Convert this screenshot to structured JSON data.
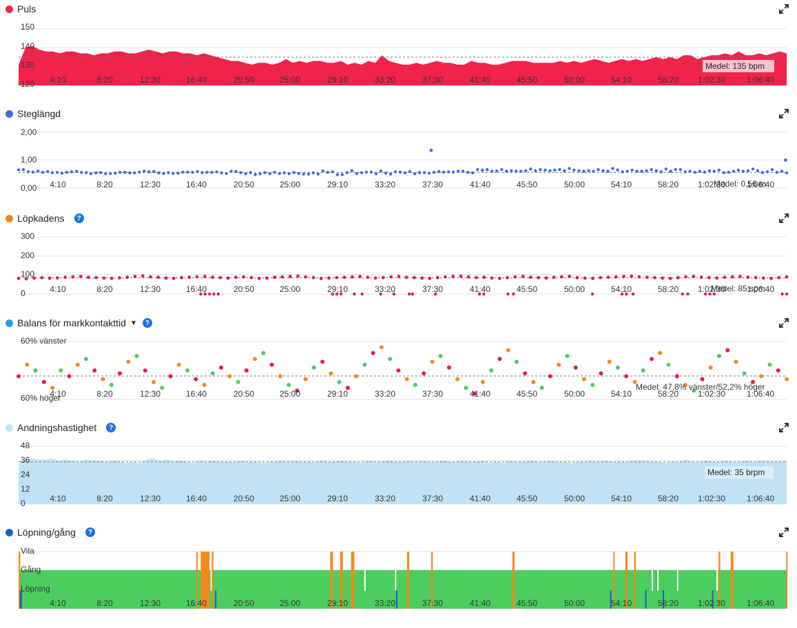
{
  "x_ticks": [
    "4:10",
    "8:20",
    "12:30",
    "16:40",
    "20:50",
    "25:00",
    "29:10",
    "33:20",
    "37:30",
    "41:40",
    "45:50",
    "50:00",
    "54:10",
    "58:20",
    "1:02:30",
    "1:06:40"
  ],
  "colors": {
    "pulse": "#f0234b",
    "stride": "#4169e1",
    "cadence_dot": "#e6194b",
    "cadence_legend": "#f0841c",
    "balance_legend": "#1ca3ec",
    "respiration": "#bfe2f6",
    "runwalk_legend": "#1565c0",
    "run": "#4ccd5f",
    "walk": "#f28a1c"
  },
  "panels": [
    {
      "id": "pulse",
      "title": "Puls",
      "has_help": false,
      "has_caret": false
    },
    {
      "id": "stride",
      "title": "Steglängd",
      "has_help": false,
      "has_caret": false
    },
    {
      "id": "cadence",
      "title": "Löpkadens",
      "has_help": true,
      "has_caret": false
    },
    {
      "id": "balance",
      "title": "Balans för markkontakttid",
      "has_help": true,
      "has_caret": true
    },
    {
      "id": "respiration",
      "title": "Andningshastighet",
      "has_help": true,
      "has_caret": false
    },
    {
      "id": "runwalk",
      "title": "Löpning/gång",
      "has_help": true,
      "has_caret": false
    }
  ],
  "chart_data": [
    {
      "type": "area",
      "title": "Puls",
      "y_ticks": [
        "150",
        "140",
        "130",
        "120"
      ],
      "ylim": [
        120,
        150
      ],
      "x_ticks_ref": "x_ticks",
      "duration_min": 70,
      "mean_label": "Medel: 135 bpm",
      "mean_value": 135,
      "series": [
        {
          "name": "Puls",
          "values": [
            131,
            140,
            141,
            139,
            138,
            138,
            137,
            138,
            138,
            137,
            137,
            136,
            137,
            137,
            138,
            138,
            137,
            137,
            138,
            139,
            138,
            137,
            138,
            138,
            137,
            137,
            136,
            137,
            136,
            135,
            134,
            133,
            133,
            132,
            131,
            132,
            132,
            131,
            132,
            134,
            132,
            133,
            132,
            133,
            133,
            132,
            132,
            133,
            131,
            132,
            131,
            133,
            132,
            136,
            133,
            132,
            131,
            131,
            132,
            131,
            132,
            133,
            132,
            132,
            131,
            131,
            133,
            132,
            132,
            131,
            131,
            132,
            133,
            133,
            133,
            132,
            132,
            132,
            132,
            133,
            132,
            133,
            132,
            133,
            134,
            133,
            132,
            133,
            134,
            133,
            134,
            133,
            134,
            135,
            134,
            135,
            134,
            136,
            136,
            134,
            135,
            136,
            136,
            137,
            136,
            138,
            136,
            136,
            137,
            136,
            137,
            138,
            137
          ]
        }
      ]
    },
    {
      "type": "scatter",
      "title": "Steglängd",
      "y_ticks": [
        "2,00",
        "1,00",
        "0,00"
      ],
      "ylim": [
        0,
        2
      ],
      "duration_min": 70,
      "mean_label": "Medel: 0,56 m",
      "mean_value": 0.56,
      "series": [
        {
          "name": "Steglängd",
          "values": [
            0.65,
            0.66,
            0.58,
            0.57,
            0.61,
            0.56,
            0.59,
            0.55,
            0.56,
            0.53,
            0.56,
            0.58,
            0.6,
            0.56,
            0.55,
            0.51,
            0.54,
            0.55,
            0.51,
            0.52,
            0.53,
            0.56,
            0.56,
            0.54,
            0.54,
            0.57,
            0.6,
            0.58,
            0.59,
            0.54,
            0.52,
            0.55,
            0.52,
            0.53,
            0.57,
            0.57,
            0.56,
            0.59,
            0.55,
            0.56,
            0.56,
            0.58,
            0.54,
            0.52,
            0.6,
            0.59,
            0.55,
            0.51,
            0.55,
            0.48,
            0.51,
            0.55,
            0.51,
            0.56,
            0.52,
            0.54,
            0.51,
            0.55,
            0.52,
            0.5,
            0.5,
            0.54,
            0.5,
            0.61,
            0.56,
            0.58,
            0.48,
            0.48,
            0.55,
            0.62,
            0.52,
            0.55,
            0.57,
            0.57,
            0.51,
            0.61,
            0.53,
            0.5,
            0.58,
            0.57,
            0.54,
            0.59,
            0.51,
            0.55,
            0.55,
            0.53,
            0.56,
            0.59,
            0.57,
            0.58,
            0.57,
            0.6,
            0.6,
            0.56,
            0.54,
            0.66,
            0.64,
            0.66,
            0.6,
            0.61,
            0.66,
            0.6,
            0.62,
            0.6,
            0.6,
            0.62,
            0.68,
            0.62,
            0.66,
            0.64,
            0.62,
            0.64,
            0.66,
            0.62,
            0.7,
            0.64,
            0.62,
            0.6,
            0.62,
            0.6,
            0.66,
            0.62,
            0.6,
            0.7,
            0.65,
            0.58,
            0.6,
            0.64,
            0.6,
            0.6,
            0.62,
            0.66,
            0.62,
            0.58,
            0.68,
            0.6,
            0.66,
            0.66,
            0.58,
            0.6,
            0.56,
            0.6,
            0.57,
            0.62,
            0.6,
            0.64,
            0.55,
            0.56,
            0.6,
            0.64,
            0.6,
            0.62,
            0.68,
            0.62,
            0.55,
            0.58,
            0.66,
            0.56,
            0.6,
            0.54
          ]
        }
      ],
      "outliers": [
        {
          "x_min": 37.6,
          "y": 1.35
        },
        {
          "x_min": 69.9,
          "y": 1.0
        }
      ]
    },
    {
      "type": "scatter",
      "title": "Löpkadens",
      "y_ticks": [
        "300",
        "200",
        "100",
        "0"
      ],
      "ylim": [
        0,
        300
      ],
      "duration_min": 70,
      "mean_label": "Medel: 85 spm",
      "mean_value": 85,
      "series": [
        {
          "name": "Löpkadens",
          "values": [
            82,
            80,
            84,
            86,
            83,
            85,
            88,
            90,
            92,
            88,
            86,
            84,
            82,
            85,
            88,
            92,
            95,
            90,
            88,
            84,
            82,
            86,
            88,
            90,
            92,
            88,
            86,
            84,
            88,
            90,
            86,
            82,
            84,
            88,
            90,
            92,
            94,
            90,
            86,
            82,
            84,
            86,
            88,
            90,
            92,
            88,
            84,
            86,
            90,
            92,
            88,
            86,
            84,
            82,
            86,
            90,
            92,
            94,
            90,
            86,
            88,
            84,
            82,
            86,
            90,
            92,
            88,
            86,
            84,
            88,
            90,
            92,
            86,
            84,
            82,
            86,
            88,
            90,
            92,
            94,
            90,
            88,
            86,
            84,
            82,
            86,
            90,
            92,
            88,
            86,
            84,
            88,
            90,
            92,
            88,
            86,
            84,
            82,
            86,
            90
          ]
        }
      ],
      "zeros_min": [
        16.6,
        17,
        17.4,
        17.8,
        18.2,
        28.6,
        29,
        29.4,
        30.6,
        31.3,
        33,
        34.2,
        35.6,
        35.9,
        38,
        42,
        42.4,
        44.6,
        45.1,
        52.3,
        55,
        55.4,
        56,
        60.5,
        61,
        62.6,
        63,
        63.4,
        69.6,
        70
      ]
    },
    {
      "type": "scatter",
      "title": "Balans för markkontakttid",
      "y_ticks": [
        "60% vänster",
        "60% höger"
      ],
      "ylim": [
        60,
        40
      ],
      "duration_min": 70,
      "mean_label": "Medel: 47,8% vänster/52,2% höger",
      "mean_value": 47.8,
      "series": [
        {
          "name": "Balans för markkontakttid",
          "values": [
            48,
            52,
            50,
            46,
            44,
            50,
            48,
            52,
            54,
            50,
            47,
            45,
            49,
            53,
            55,
            50,
            46,
            44,
            48,
            52,
            50,
            47,
            45,
            49,
            51,
            48,
            46,
            50,
            54,
            56,
            52,
            48,
            45,
            43,
            47,
            51,
            53,
            49,
            46,
            44,
            48,
            52,
            56,
            58,
            54,
            50,
            47,
            45,
            49,
            53,
            55,
            51,
            47,
            44,
            42,
            46,
            50,
            54,
            57,
            53,
            49,
            46,
            44,
            48,
            52,
            55,
            51,
            47,
            45,
            49,
            53,
            51,
            48,
            46,
            50,
            54,
            56,
            52,
            48,
            45,
            43,
            47,
            51,
            55,
            57,
            53,
            49,
            46,
            48,
            52,
            50,
            47
          ]
        }
      ]
    },
    {
      "type": "area",
      "title": "Andningshastighet",
      "y_ticks": [
        "48",
        "36",
        "24",
        "12",
        "0"
      ],
      "ylim": [
        0,
        48
      ],
      "duration_min": 70,
      "mean_label": "Medel: 35 brpm",
      "mean_value": 35,
      "series": [
        {
          "name": "Andningshastighet",
          "values": [
            33,
            37,
            38,
            37,
            37,
            38,
            36,
            37,
            36,
            35,
            37,
            36,
            36,
            35,
            36,
            35,
            34,
            35,
            34,
            37,
            38,
            36,
            37,
            35,
            36,
            35,
            34,
            36,
            35,
            36,
            35,
            35,
            35,
            36,
            35,
            35,
            34,
            35,
            35,
            36,
            35,
            36,
            35,
            35,
            35,
            36,
            35,
            35,
            36,
            35,
            35,
            34,
            36,
            35,
            35,
            36,
            35,
            35,
            36,
            35,
            36,
            35,
            35,
            36,
            35,
            35,
            36,
            35,
            35,
            36,
            34,
            35,
            34,
            36,
            35,
            35,
            36,
            35,
            35,
            36,
            35,
            35,
            34,
            35,
            35,
            36,
            35,
            36,
            35,
            35,
            35,
            36,
            36,
            36,
            35,
            35,
            34,
            35,
            35,
            37,
            35,
            35,
            36,
            35,
            35,
            36,
            35,
            35,
            36,
            35,
            36,
            36,
            35,
            35,
            36
          ]
        }
      ]
    },
    {
      "type": "bar",
      "title": "Löpning/gång",
      "y_ticks": [
        "Vila",
        "Gång",
        "Löpning"
      ],
      "duration_min": 70,
      "state": "Löpning",
      "walk_segments_min": [
        [
          0,
          0.15
        ],
        [
          16.2,
          16.3
        ],
        [
          16.6,
          17.4
        ],
        [
          17.6,
          17.75
        ],
        [
          28.4,
          28.65
        ],
        [
          29.3,
          29.55
        ],
        [
          30.3,
          30.6
        ],
        [
          35.4,
          35.6
        ],
        [
          37.6,
          37.75
        ],
        [
          45,
          45.2
        ],
        [
          54.2,
          54.3
        ],
        [
          55.3,
          55.5
        ],
        [
          56.1,
          56.25
        ],
        [
          69.95,
          70
        ],
        [
          63.8,
          63.95
        ],
        [
          64.9,
          65.15
        ]
      ],
      "rest_segments_min": [
        [
          17.5,
          17.55
        ],
        [
          31.5,
          31.6
        ],
        [
          34.3,
          34.35
        ],
        [
          57.7,
          57.8
        ],
        [
          58.2,
          58.25
        ],
        [
          60,
          60.1
        ],
        [
          63.6,
          63.7
        ]
      ],
      "run_dip_segments_min": [
        [
          0.1,
          0.3
        ],
        [
          17.9,
          18.0
        ],
        [
          34.4,
          34.5
        ],
        [
          53.9,
          54.0
        ],
        [
          57.1,
          57.2
        ],
        [
          58.7,
          58.8
        ],
        [
          63.2,
          63.3
        ]
      ]
    }
  ]
}
